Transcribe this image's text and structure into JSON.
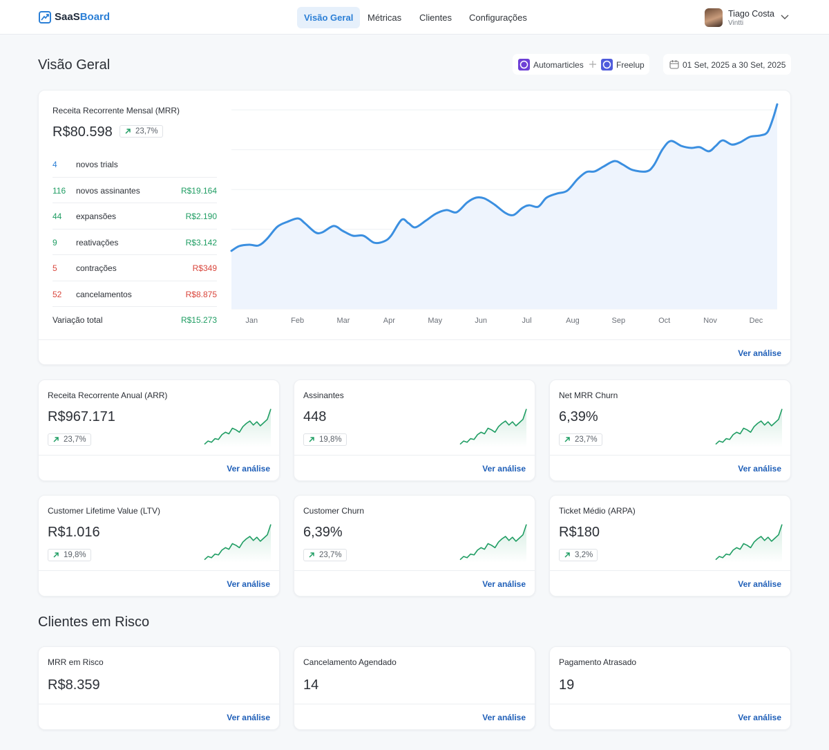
{
  "header": {
    "brand": {
      "prefix": "SaaS",
      "suffix": "Board"
    },
    "nav": [
      {
        "label": "Visão Geral",
        "active": true
      },
      {
        "label": "Métricas",
        "active": false
      },
      {
        "label": "Clientes",
        "active": false
      },
      {
        "label": "Configurações",
        "active": false
      }
    ],
    "user": {
      "name": "Tiago Costa",
      "company": "Vintti"
    }
  },
  "page_title": "Visão Geral",
  "integrations": [
    {
      "label": "Automarticles",
      "color": "#6d3fd6"
    },
    {
      "label": "Freelup",
      "color": "#4f5bdc"
    }
  ],
  "date_range": "01 Set, 2025 a 30 Set, 2025",
  "mrr_card": {
    "title": "Receita Recorrente Mensal (MRR)",
    "value": "R$80.598",
    "change": "23,7%",
    "rows": [
      {
        "count": 4,
        "label": "novos trials",
        "color": "#2b7fd6"
      },
      {
        "count": 116,
        "label": "novos assinantes",
        "amount": "R$19.164",
        "color": "#1f9d63"
      },
      {
        "count": 44,
        "label": "expansões",
        "amount": "R$2.190",
        "color": "#1f9d63"
      },
      {
        "count": 9,
        "label": "reativações",
        "amount": "R$3.142",
        "color": "#1f9d63"
      },
      {
        "count": 5,
        "label": "contrações",
        "amount": "R$349",
        "color": "#d9453b"
      },
      {
        "count": 52,
        "label": "cancelamentos",
        "amount": "R$8.875",
        "color": "#d9453b"
      }
    ],
    "total": {
      "label": "Variação total",
      "amount": "R$15.273",
      "color": "#1f9d63"
    },
    "link": "Ver análise",
    "chart_data": {
      "type": "line",
      "color": "#3b8fe0",
      "grid": true,
      "xlim": [
        -0.44,
        11.46
      ],
      "ylim": [
        0,
        105
      ],
      "xticks": [
        {
          "value": 0,
          "label": "Jan"
        },
        {
          "value": 1,
          "label": "Feb"
        },
        {
          "value": 2,
          "label": "Mar"
        },
        {
          "value": 3,
          "label": "Apr"
        },
        {
          "value": 4,
          "label": "May"
        },
        {
          "value": 5,
          "label": "Jun"
        },
        {
          "value": 6,
          "label": "Jul"
        },
        {
          "value": 7,
          "label": "Aug"
        },
        {
          "value": 8,
          "label": "Sep"
        },
        {
          "value": 9,
          "label": "Oct"
        },
        {
          "value": 10,
          "label": "Nov"
        },
        {
          "value": 11,
          "label": "Dec"
        }
      ],
      "x": [
        -0.44,
        -0.27,
        -0.05,
        0.15,
        0.33,
        0.56,
        0.78,
        1.01,
        1.16,
        1.39,
        1.54,
        1.79,
        1.99,
        2.21,
        2.44,
        2.67,
        2.89,
        3.04,
        3.27,
        3.42,
        3.57,
        3.8,
        4.02,
        4.25,
        4.47,
        4.7,
        4.89,
        5.07,
        5.3,
        5.53,
        5.71,
        5.9,
        6.05,
        6.25,
        6.43,
        6.66,
        6.88,
        7.11,
        7.3,
        7.48,
        7.67,
        7.91,
        8.09,
        8.31,
        8.61,
        8.77,
        8.96,
        9.14,
        9.37,
        9.59,
        9.77,
        9.97,
        10.12,
        10.27,
        10.47,
        10.65,
        10.87,
        11.1,
        11.25,
        11.37,
        11.46
      ],
      "values": [
        29.2,
        31.6,
        32.3,
        31.9,
        35.1,
        41.3,
        43.8,
        45.5,
        43.1,
        38.5,
        38.5,
        41.7,
        39.2,
        36.8,
        36.8,
        33.3,
        34.0,
        36.8,
        44.8,
        43.1,
        41.0,
        44.4,
        47.9,
        49.7,
        48.6,
        53.5,
        55.9,
        55.6,
        52.4,
        48.3,
        47.2,
        50.7,
        52.1,
        51.4,
        55.9,
        58.0,
        59.4,
        65.3,
        68.8,
        69.1,
        71.5,
        74.3,
        72.6,
        69.8,
        69.1,
        72.2,
        80.2,
        84.4,
        81.9,
        80.9,
        81.3,
        79.2,
        81.9,
        84.7,
        82.6,
        83.7,
        86.5,
        87.2,
        88.9,
        95.8,
        102.8
      ]
    }
  },
  "sparkline": {
    "type": "line",
    "color": "#1f9d63",
    "ylim": [
      0,
      100
    ],
    "values": [
      4,
      12,
      9,
      18,
      16,
      28,
      34,
      30,
      44,
      40,
      34,
      48,
      56,
      62,
      52,
      60,
      50,
      58,
      66,
      92
    ]
  },
  "metric_cards": [
    {
      "title": "Receita Recorrente Anual (ARR)",
      "value": "R$967.171",
      "change": "23,7%",
      "link": "Ver análise"
    },
    {
      "title": "Assinantes",
      "value": "448",
      "change": "19,8%",
      "link": "Ver análise"
    },
    {
      "title": "Net MRR Churn",
      "value": "6,39%",
      "change": "23,7%",
      "link": "Ver análise"
    },
    {
      "title": "Customer Lifetime Value (LTV)",
      "value": "R$1.016",
      "change": "19,8%",
      "link": "Ver análise"
    },
    {
      "title": "Customer Churn",
      "value": "6,39%",
      "change": "23,7%",
      "link": "Ver análise"
    },
    {
      "title": "Ticket Médio (ARPA)",
      "value": "R$180",
      "change": "3,2%",
      "link": "Ver análise"
    }
  ],
  "risk_title": "Clientes em Risco",
  "risk_cards": [
    {
      "title": "MRR em Risco",
      "value": "R$8.359",
      "link": "Ver análise"
    },
    {
      "title": "Cancelamento Agendado",
      "value": "14",
      "link": "Ver análise"
    },
    {
      "title": "Pagamento Atrasado",
      "value": "19",
      "link": "Ver análise"
    }
  ]
}
